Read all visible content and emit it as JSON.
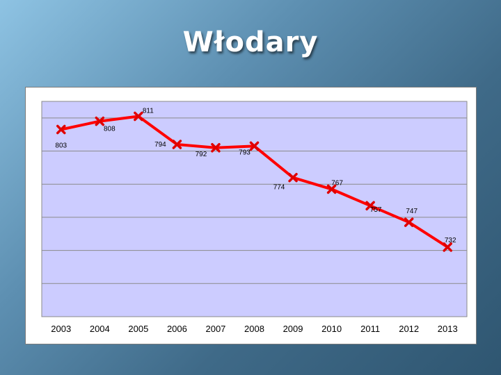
{
  "slide": {
    "title": "Włodary"
  },
  "colors": {
    "plot_bg": "#ccccff",
    "grid": "#8a8a8a",
    "series": "#ff0000",
    "marker": "#e00000"
  },
  "chart_data": {
    "type": "line",
    "title": "",
    "xlabel": "",
    "ylabel": "",
    "categories": [
      "2003",
      "2004",
      "2005",
      "2006",
      "2007",
      "2008",
      "2009",
      "2010",
      "2011",
      "2012",
      "2013"
    ],
    "series": [
      {
        "values": [
          803,
          808,
          811,
          794,
          792,
          793,
          774,
          767,
          757,
          747,
          732
        ]
      }
    ],
    "data_labels": [
      "803",
      "808",
      "811",
      "794",
      "792",
      "793",
      "774",
      "767",
      "757",
      "747",
      "732"
    ],
    "ylim": [
      690,
      820
    ],
    "ytick_step": 20,
    "yaxis_labels_shown": false,
    "grid": true,
    "legend": "none",
    "marker": "x"
  }
}
